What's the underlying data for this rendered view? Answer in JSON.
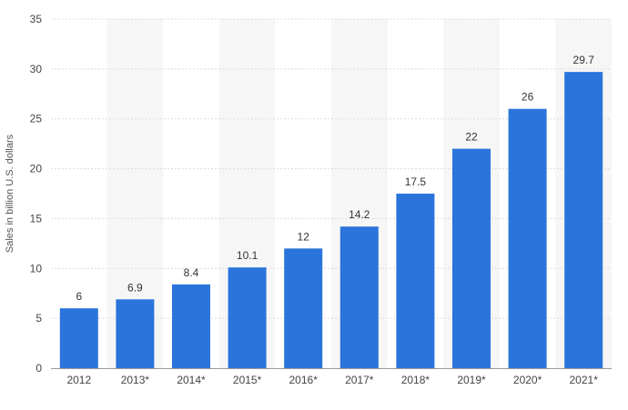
{
  "chart_data": {
    "type": "bar",
    "categories": [
      "2012",
      "2013*",
      "2014*",
      "2015*",
      "2016*",
      "2017*",
      "2018*",
      "2019*",
      "2020*",
      "2021*"
    ],
    "values": [
      6,
      6.9,
      8.4,
      10.1,
      12,
      14.2,
      17.5,
      22,
      26,
      29.7
    ],
    "data_labels": [
      "6",
      "6.9",
      "8.4",
      "10.1",
      "12",
      "14.2",
      "17.5",
      "22",
      "26",
      "29.7"
    ],
    "title": "",
    "xlabel": "",
    "ylabel": "Sales in billion U.S. dollars",
    "ylim": [
      0,
      35
    ],
    "yticks": [
      0,
      5,
      10,
      15,
      20,
      25,
      30,
      35
    ],
    "grid": true,
    "legend": "none",
    "bar_color": "#2a74db",
    "band_color": "#f6f6f6"
  }
}
